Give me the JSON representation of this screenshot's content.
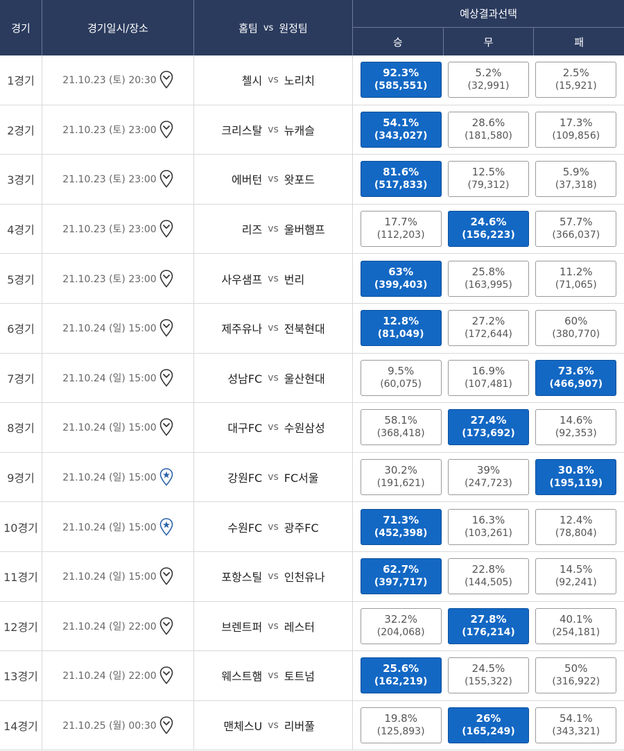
{
  "header": {
    "col_no": "경기",
    "col_date": "경기일시/장소",
    "col_teams_home": "홈팀",
    "col_teams_vs": "vs",
    "col_teams_away": "원정팀",
    "pred_title": "예상결과선택",
    "win": "승",
    "draw": "무",
    "lose": "패"
  },
  "colors": {
    "header_bg": "#2b3b5e",
    "selected": "#1368c4",
    "pin_star": "#2a63a8"
  },
  "matches": [
    {
      "no": "1경기",
      "date": "21.10.23 (토) 20:30",
      "pin": "location-pin",
      "home": "첼시",
      "vs": "vs",
      "away": "노리치",
      "win": {
        "pct": "92.3%",
        "count": "(585,551)"
      },
      "draw": {
        "pct": "5.2%",
        "count": "(32,991)"
      },
      "lose": {
        "pct": "2.5%",
        "count": "(15,921)"
      },
      "selected": "win"
    },
    {
      "no": "2경기",
      "date": "21.10.23 (토) 23:00",
      "pin": "location-pin",
      "home": "크리스탈",
      "vs": "vs",
      "away": "뉴캐슬",
      "win": {
        "pct": "54.1%",
        "count": "(343,027)"
      },
      "draw": {
        "pct": "28.6%",
        "count": "(181,580)"
      },
      "lose": {
        "pct": "17.3%",
        "count": "(109,856)"
      },
      "selected": "win"
    },
    {
      "no": "3경기",
      "date": "21.10.23 (토) 23:00",
      "pin": "location-pin",
      "home": "에버턴",
      "vs": "vs",
      "away": "왓포드",
      "win": {
        "pct": "81.6%",
        "count": "(517,833)"
      },
      "draw": {
        "pct": "12.5%",
        "count": "(79,312)"
      },
      "lose": {
        "pct": "5.9%",
        "count": "(37,318)"
      },
      "selected": "win"
    },
    {
      "no": "4경기",
      "date": "21.10.23 (토) 23:00",
      "pin": "location-pin",
      "home": "리즈",
      "vs": "vs",
      "away": "울버햄프",
      "win": {
        "pct": "17.7%",
        "count": "(112,203)"
      },
      "draw": {
        "pct": "24.6%",
        "count": "(156,223)"
      },
      "lose": {
        "pct": "57.7%",
        "count": "(366,037)"
      },
      "selected": "draw"
    },
    {
      "no": "5경기",
      "date": "21.10.23 (토) 23:00",
      "pin": "location-pin",
      "home": "사우샘프",
      "vs": "vs",
      "away": "번리",
      "win": {
        "pct": "63%",
        "count": "(399,403)"
      },
      "draw": {
        "pct": "25.8%",
        "count": "(163,995)"
      },
      "lose": {
        "pct": "11.2%",
        "count": "(71,065)"
      },
      "selected": "win"
    },
    {
      "no": "6경기",
      "date": "21.10.24 (일) 15:00",
      "pin": "location-pin",
      "home": "제주유나",
      "vs": "vs",
      "away": "전북현대",
      "win": {
        "pct": "12.8%",
        "count": "(81,049)"
      },
      "draw": {
        "pct": "27.2%",
        "count": "(172,644)"
      },
      "lose": {
        "pct": "60%",
        "count": "(380,770)"
      },
      "selected": "win"
    },
    {
      "no": "7경기",
      "date": "21.10.24 (일) 15:00",
      "pin": "location-pin",
      "home": "성남FC",
      "vs": "vs",
      "away": "울산현대",
      "win": {
        "pct": "9.5%",
        "count": "(60,075)"
      },
      "draw": {
        "pct": "16.9%",
        "count": "(107,481)"
      },
      "lose": {
        "pct": "73.6%",
        "count": "(466,907)"
      },
      "selected": "lose"
    },
    {
      "no": "8경기",
      "date": "21.10.24 (일) 15:00",
      "pin": "location-pin",
      "home": "대구FC",
      "vs": "vs",
      "away": "수원삼성",
      "win": {
        "pct": "58.1%",
        "count": "(368,418)"
      },
      "draw": {
        "pct": "27.4%",
        "count": "(173,692)"
      },
      "lose": {
        "pct": "14.6%",
        "count": "(92,353)"
      },
      "selected": "draw"
    },
    {
      "no": "9경기",
      "date": "21.10.24 (일) 15:00",
      "pin": "star-pin",
      "home": "강원FC",
      "vs": "vs",
      "away": "FC서울",
      "win": {
        "pct": "30.2%",
        "count": "(191,621)"
      },
      "draw": {
        "pct": "39%",
        "count": "(247,723)"
      },
      "lose": {
        "pct": "30.8%",
        "count": "(195,119)"
      },
      "selected": "lose"
    },
    {
      "no": "10경기",
      "date": "21.10.24 (일) 15:00",
      "pin": "star-pin",
      "home": "수원FC",
      "vs": "vs",
      "away": "광주FC",
      "win": {
        "pct": "71.3%",
        "count": "(452,398)"
      },
      "draw": {
        "pct": "16.3%",
        "count": "(103,261)"
      },
      "lose": {
        "pct": "12.4%",
        "count": "(78,804)"
      },
      "selected": "win"
    },
    {
      "no": "11경기",
      "date": "21.10.24 (일) 15:00",
      "pin": "location-pin",
      "home": "포항스틸",
      "vs": "vs",
      "away": "인천유나",
      "win": {
        "pct": "62.7%",
        "count": "(397,717)"
      },
      "draw": {
        "pct": "22.8%",
        "count": "(144,505)"
      },
      "lose": {
        "pct": "14.5%",
        "count": "(92,241)"
      },
      "selected": "win"
    },
    {
      "no": "12경기",
      "date": "21.10.24 (일) 22:00",
      "pin": "location-pin",
      "home": "브렌트퍼",
      "vs": "vs",
      "away": "레스터",
      "win": {
        "pct": "32.2%",
        "count": "(204,068)"
      },
      "draw": {
        "pct": "27.8%",
        "count": "(176,214)"
      },
      "lose": {
        "pct": "40.1%",
        "count": "(254,181)"
      },
      "selected": "draw"
    },
    {
      "no": "13경기",
      "date": "21.10.24 (일) 22:00",
      "pin": "location-pin",
      "home": "웨스트햄",
      "vs": "vs",
      "away": "토트넘",
      "win": {
        "pct": "25.6%",
        "count": "(162,219)"
      },
      "draw": {
        "pct": "24.5%",
        "count": "(155,322)"
      },
      "lose": {
        "pct": "50%",
        "count": "(316,922)"
      },
      "selected": "win"
    },
    {
      "no": "14경기",
      "date": "21.10.25 (월) 00:30",
      "pin": "location-pin",
      "home": "맨체스U",
      "vs": "vs",
      "away": "리버풀",
      "win": {
        "pct": "19.8%",
        "count": "(125,893)"
      },
      "draw": {
        "pct": "26%",
        "count": "(165,249)"
      },
      "lose": {
        "pct": "54.1%",
        "count": "(343,321)"
      },
      "selected": "draw"
    }
  ]
}
